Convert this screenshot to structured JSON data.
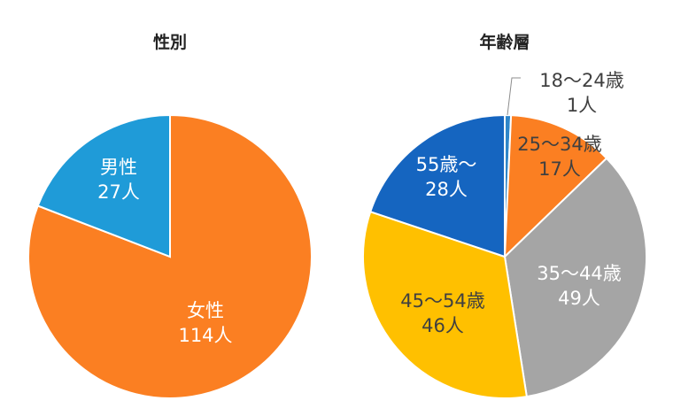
{
  "chart_data": [
    {
      "type": "pie",
      "title": "性別",
      "slices": [
        {
          "label": "女性",
          "value": 114,
          "value_text": "114人",
          "color": "#FB7F22"
        },
        {
          "label": "男性",
          "value": 27,
          "value_text": "27人",
          "color": "#1F9BD8"
        }
      ]
    },
    {
      "type": "pie",
      "title": "年齢層",
      "slices": [
        {
          "label": "18～24歳",
          "value": 1,
          "value_text": "1人",
          "color": "#2F86C9"
        },
        {
          "label": "25～34歳",
          "value": 17,
          "value_text": "17人",
          "color": "#FB7F22"
        },
        {
          "label": "35～44歳",
          "value": 49,
          "value_text": "49人",
          "color": "#A5A5A5"
        },
        {
          "label": "45～54歳",
          "value": 46,
          "value_text": "46人",
          "color": "#FFC000"
        },
        {
          "label": "55歳～",
          "value": 28,
          "value_text": "28人",
          "color": "#1565C0"
        }
      ]
    }
  ]
}
